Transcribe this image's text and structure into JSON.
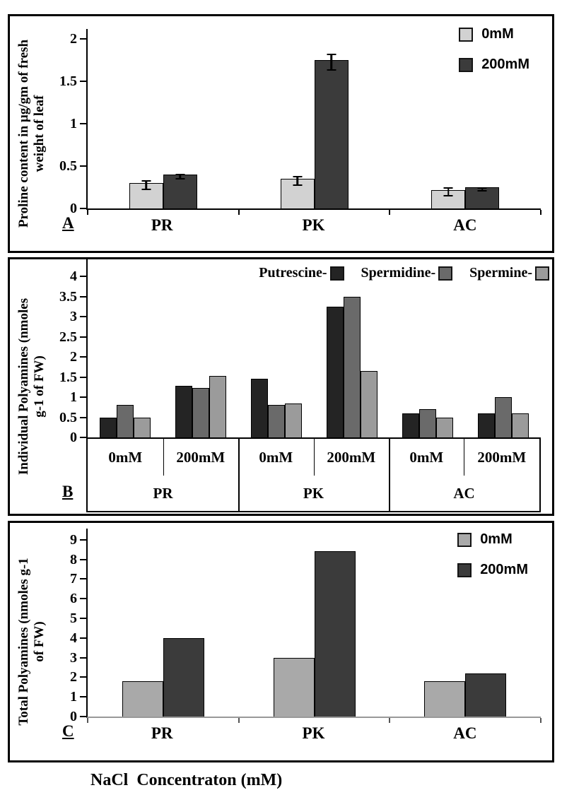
{
  "figure": {
    "x_axis_title": "NaCl  Concentraton (mM)"
  },
  "panels": [
    {
      "id": "A",
      "label": "A",
      "ylabel_lines": [
        "Proline content in µg/gm of fresh",
        "weight of leaf"
      ]
    },
    {
      "id": "B",
      "label": "B",
      "ylabel_lines": [
        "Individual Polyamines (nmoles",
        "g-1 of FW)"
      ]
    },
    {
      "id": "C",
      "label": "C",
      "ylabel_lines": [
        "Total Polyamines (nmoles g-1",
        "of FW)"
      ]
    }
  ],
  "chart_data": [
    {
      "id": "A",
      "type": "bar",
      "title": "",
      "ylabel": "Proline content in µg/gm of fresh weight of leaf",
      "categories": [
        "PR",
        "PK",
        "AC"
      ],
      "series": [
        {
          "name": "0mM",
          "color": "#d2d2d2",
          "values": [
            0.3,
            0.35,
            0.22
          ],
          "errors": [
            0.04,
            0.04,
            0.04
          ]
        },
        {
          "name": "200mM",
          "color": "#3b3b3b",
          "values": [
            0.4,
            1.75,
            0.25
          ],
          "errors": [
            0.02,
            0.08,
            0.01
          ]
        }
      ],
      "ylim": [
        0,
        2
      ],
      "ytick_labels": [
        "0",
        "0.5",
        "1",
        "1.5",
        "2"
      ],
      "legend_position": "top-right",
      "error_bars": true,
      "grid": false
    },
    {
      "id": "B",
      "type": "bar",
      "title": "",
      "ylabel": "Individual Polyamines (nmoles g-1 of FW)",
      "group_categories": [
        "PR",
        "PK",
        "AC"
      ],
      "sub_categories": [
        "0mM",
        "200mM"
      ],
      "values_order": [
        "PR-0mM",
        "PR-200mM",
        "PK-0mM",
        "PK-200mM",
        "AC-0mM",
        "AC-200mM"
      ],
      "series": [
        {
          "name": "Putrescine-",
          "color": "#242424",
          "values": [
            0.5,
            1.28,
            1.45,
            3.25,
            0.6,
            0.6
          ]
        },
        {
          "name": "Spermidine-",
          "color": "#6a6a6a",
          "values": [
            0.8,
            1.22,
            0.8,
            3.5,
            0.7,
            1.0
          ]
        },
        {
          "name": "Spermine-",
          "color": "#9b9b9b",
          "values": [
            0.5,
            1.52,
            0.85,
            1.65,
            0.5,
            0.6
          ]
        }
      ],
      "ylim": [
        0,
        4
      ],
      "ytick_labels": [
        "0",
        "0.5",
        "1",
        "1.5",
        "2",
        "2.5",
        "3",
        "3.5",
        "4"
      ],
      "legend_position": "top",
      "error_bars": false,
      "grid": false
    },
    {
      "id": "C",
      "type": "bar",
      "title": "",
      "ylabel": "Total Polyamines (nmoles g-1 of FW)",
      "categories": [
        "PR",
        "PK",
        "AC"
      ],
      "series": [
        {
          "name": "0mM",
          "color": "#a9a9a9",
          "values": [
            1.8,
            3.0,
            1.8
          ]
        },
        {
          "name": "200mM",
          "color": "#3b3b3b",
          "values": [
            4.0,
            8.4,
            2.2
          ]
        }
      ],
      "ylim": [
        0,
        9
      ],
      "ytick_labels": [
        "0",
        "1",
        "2",
        "3",
        "4",
        "5",
        "6",
        "7",
        "8",
        "9"
      ],
      "legend_position": "top-right",
      "error_bars": false,
      "grid": false
    }
  ]
}
